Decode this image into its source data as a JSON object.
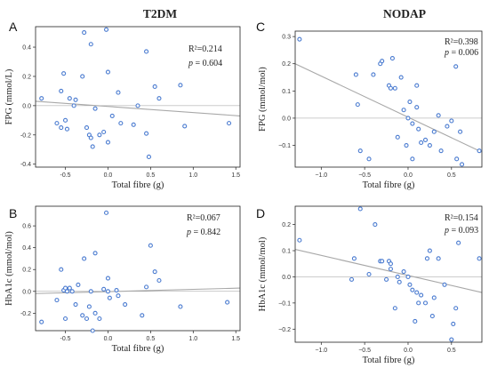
{
  "group_titles": {
    "left": "T2DM",
    "right": "NODAP"
  },
  "chart_data": [
    {
      "id": "A",
      "type": "scatter",
      "panel_label": "A",
      "group": "T2DM",
      "xlabel": "Total fibre (g)",
      "ylabel": "FPG (mmol/L)",
      "xlim": [
        -0.85,
        1.55
      ],
      "ylim": [
        -0.42,
        0.54
      ],
      "xticks": [
        -0.5,
        0.0,
        0.5,
        1.0,
        1.5
      ],
      "xtick_labels": [
        "-0.5",
        "0.0",
        "0.5",
        "1.0",
        "1.5"
      ],
      "yticks": [
        -0.4,
        -0.2,
        0.0,
        0.2,
        0.4
      ],
      "ytick_labels": [
        "-0.4",
        "-0.2",
        "0.0",
        "0.2",
        "0.4"
      ],
      "r2_text": "R²=0.214",
      "p_label": "p",
      "p_value": "= 0.604",
      "fit": {
        "x": [
          -0.85,
          1.55
        ],
        "y": [
          0.03,
          -0.07
        ]
      },
      "x": [
        -0.78,
        -0.6,
        -0.55,
        -0.55,
        -0.52,
        -0.5,
        -0.48,
        -0.45,
        -0.4,
        -0.38,
        -0.3,
        -0.28,
        -0.25,
        -0.22,
        -0.2,
        -0.2,
        -0.18,
        -0.15,
        -0.1,
        -0.05,
        -0.02,
        0.0,
        0.0,
        0.05,
        0.12,
        0.15,
        0.3,
        0.35,
        0.45,
        0.45,
        0.48,
        0.55,
        0.6,
        0.85,
        0.9,
        1.42
      ],
      "y": [
        0.05,
        -0.12,
        0.1,
        -0.15,
        0.22,
        -0.1,
        -0.16,
        0.05,
        0.0,
        0.04,
        0.2,
        0.5,
        -0.15,
        -0.2,
        -0.22,
        0.42,
        -0.28,
        -0.02,
        -0.2,
        -0.18,
        0.52,
        -0.25,
        0.23,
        -0.07,
        0.09,
        -0.12,
        -0.13,
        0.0,
        0.37,
        -0.19,
        -0.35,
        0.13,
        0.05,
        0.14,
        -0.14,
        -0.12
      ]
    },
    {
      "id": "B",
      "type": "scatter",
      "panel_label": "B",
      "group": "T2DM",
      "xlabel": "Total fibre (g)",
      "ylabel": "HbA1c (mmol/mol)",
      "xlim": [
        -0.85,
        1.55
      ],
      "ylim": [
        -0.36,
        0.78
      ],
      "xticks": [
        -0.5,
        0.0,
        0.5,
        1.0,
        1.5
      ],
      "xtick_labels": [
        "-0.5",
        "0.0",
        "0.5",
        "1.0",
        "1.5"
      ],
      "yticks": [
        -0.2,
        0.0,
        0.2,
        0.4,
        0.6
      ],
      "ytick_labels": [
        "-0.2",
        "0.0",
        "0.2",
        "0.4",
        "0.6"
      ],
      "r2_text": "R²=0.067",
      "p_label": "p",
      "p_value": "= 0.842",
      "fit": {
        "x": [
          -0.85,
          1.55
        ],
        "y": [
          -0.02,
          0.03
        ]
      },
      "x": [
        -0.78,
        -0.6,
        -0.55,
        -0.52,
        -0.5,
        -0.5,
        -0.48,
        -0.45,
        -0.42,
        -0.38,
        -0.35,
        -0.3,
        -0.28,
        -0.25,
        -0.22,
        -0.2,
        -0.18,
        -0.15,
        -0.15,
        -0.1,
        -0.05,
        -0.02,
        0.0,
        0.0,
        0.02,
        0.1,
        0.12,
        0.2,
        0.4,
        0.45,
        0.5,
        0.55,
        0.6,
        0.85,
        1.4
      ],
      "y": [
        -0.28,
        -0.08,
        0.2,
        0.01,
        0.03,
        -0.25,
        0.0,
        0.03,
        0.0,
        -0.12,
        0.06,
        -0.22,
        0.3,
        -0.25,
        -0.14,
        0.0,
        -0.36,
        -0.2,
        0.35,
        -0.25,
        0.02,
        0.72,
        0.12,
        0.0,
        -0.06,
        0.01,
        -0.04,
        -0.12,
        -0.22,
        0.04,
        0.42,
        0.18,
        0.1,
        -0.14,
        -0.1
      ]
    },
    {
      "id": "C",
      "type": "scatter",
      "panel_label": "C",
      "group": "NODAP",
      "xlabel": "Total fibre (g)",
      "ylabel": "FPG (mmol/mol)",
      "xlim": [
        -1.3,
        0.85
      ],
      "ylim": [
        -0.18,
        0.32
      ],
      "xticks": [
        -1.0,
        -0.5,
        0.0,
        0.5
      ],
      "xtick_labels": [
        "−1.0",
        "−0.5",
        "0.0",
        "0.5"
      ],
      "yticks": [
        -0.1,
        0.0,
        0.1,
        0.2,
        0.3
      ],
      "ytick_labels": [
        "−0.1",
        "0.0",
        "0.1",
        "0.2",
        "0.3"
      ],
      "r2_text": "R²=0.398",
      "p_label": "p",
      "p_value": "= 0.006",
      "fit": {
        "x": [
          -1.3,
          0.85
        ],
        "y": [
          0.2,
          -0.125
        ]
      },
      "x": [
        -1.25,
        -0.6,
        -0.58,
        -0.55,
        -0.45,
        -0.4,
        -0.32,
        -0.3,
        -0.22,
        -0.2,
        -0.18,
        -0.15,
        -0.12,
        -0.08,
        -0.05,
        -0.02,
        0.0,
        0.02,
        0.05,
        0.05,
        0.1,
        0.1,
        0.12,
        0.15,
        0.2,
        0.25,
        0.3,
        0.35,
        0.38,
        0.45,
        0.5,
        0.55,
        0.56,
        0.6,
        0.62,
        0.82
      ],
      "y": [
        0.29,
        0.16,
        0.05,
        -0.12,
        -0.15,
        0.16,
        0.2,
        0.21,
        0.12,
        0.11,
        0.22,
        0.11,
        -0.07,
        0.15,
        0.03,
        -0.1,
        0.0,
        0.06,
        -0.02,
        -0.15,
        0.12,
        0.04,
        -0.04,
        -0.09,
        -0.08,
        -0.1,
        -0.05,
        0.01,
        -0.12,
        -0.03,
        -0.01,
        0.19,
        -0.15,
        -0.05,
        -0.17,
        -0.12
      ]
    },
    {
      "id": "D",
      "type": "scatter",
      "panel_label": "D",
      "group": "NODAP",
      "xlabel": "Total fibre (g)",
      "ylabel": "HbA1c (mmol/mol)",
      "xlim": [
        -1.3,
        0.85
      ],
      "ylim": [
        -0.25,
        0.27
      ],
      "xticks": [
        -1.0,
        -0.5,
        0.0,
        0.5
      ],
      "xtick_labels": [
        "−1.0",
        "−0.5",
        "0.0",
        "0.5"
      ],
      "yticks": [
        -0.2,
        -0.1,
        0.0,
        0.1,
        0.2
      ],
      "ytick_labels": [
        "−0.2",
        "−0.1",
        "0.0",
        "0.1",
        "0.2"
      ],
      "r2_text": "R²=0.154",
      "p_label": "p",
      "p_value": "= 0.093",
      "fit": {
        "x": [
          -1.3,
          0.85
        ],
        "y": [
          0.105,
          -0.06
        ]
      },
      "x": [
        -1.25,
        -0.65,
        -0.62,
        -0.55,
        -0.45,
        -0.38,
        -0.32,
        -0.3,
        -0.25,
        -0.22,
        -0.2,
        -0.2,
        -0.15,
        -0.12,
        -0.1,
        -0.05,
        0.0,
        0.02,
        0.05,
        0.08,
        0.1,
        0.12,
        0.15,
        0.2,
        0.22,
        0.25,
        0.28,
        0.3,
        0.35,
        0.42,
        0.5,
        0.52,
        0.55,
        0.58,
        0.82
      ],
      "y": [
        0.14,
        -0.01,
        0.07,
        0.26,
        0.01,
        0.2,
        0.06,
        0.06,
        -0.01,
        0.06,
        0.03,
        0.05,
        -0.12,
        0.0,
        -0.02,
        0.02,
        0.0,
        -0.03,
        -0.05,
        -0.17,
        -0.06,
        -0.1,
        -0.07,
        -0.1,
        0.07,
        0.1,
        -0.15,
        -0.08,
        0.07,
        -0.03,
        -0.24,
        -0.18,
        -0.12,
        0.13,
        0.07
      ]
    }
  ]
}
